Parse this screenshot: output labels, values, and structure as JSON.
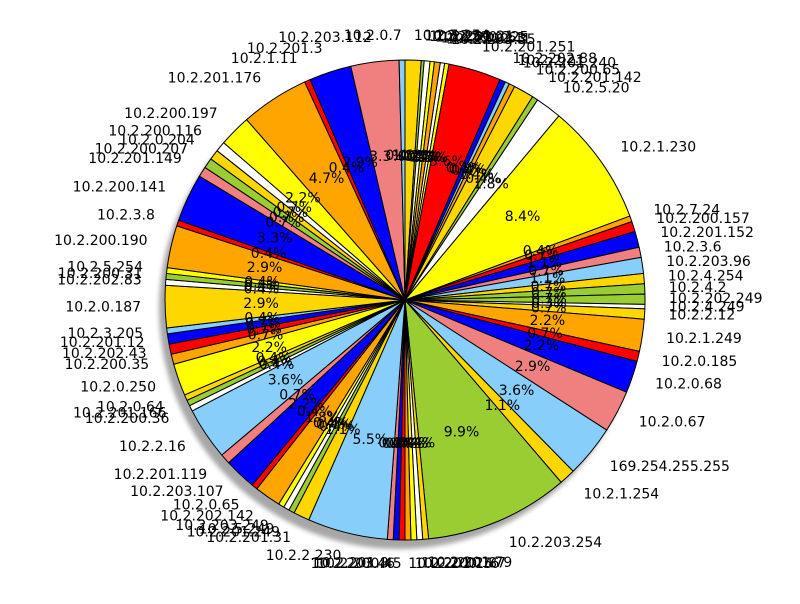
{
  "chart_data": {
    "type": "pie",
    "title": "",
    "shadow": true,
    "start_angle_deg": 90,
    "direction": "clockwise",
    "slices": [
      {
        "label": "10.2.7.254",
        "value": 1.1,
        "pct_label": "1.1%",
        "color": "#ffd700"
      },
      {
        "label": "10.2.2.10",
        "value": 0.2,
        "pct_label": "0.2%",
        "color": "#9acd32"
      },
      {
        "label": "10.2.201.21",
        "value": 0.4,
        "pct_label": "0.4%",
        "color": "#ffffff"
      },
      {
        "label": "10.2.200.225",
        "value": 0.3,
        "pct_label": "0.3%",
        "color": "#ffff00"
      },
      {
        "label": "10.2.200.63",
        "value": 0.4,
        "pct_label": "0.4%",
        "color": "#ffa500"
      },
      {
        "label": "10.2.200.41",
        "value": 0.3,
        "pct_label": "0.3%",
        "color": "#ffffff"
      },
      {
        "label": "10.2.203.35",
        "value": 0.3,
        "pct_label": "0.3%",
        "color": "#ffff00"
      },
      {
        "label": "10.2.201.251",
        "value": 3.6,
        "pct_label": "3.6%",
        "color": "#ff0000"
      },
      {
        "label": "10.2.202.88",
        "value": 0.4,
        "pct_label": "0.4%",
        "color": "#0000ff"
      },
      {
        "label": "10.2.2.21",
        "value": 0.3,
        "pct_label": "0.3%",
        "color": "#87cefa"
      },
      {
        "label": "10.2.201.240",
        "value": 0.4,
        "pct_label": "0.4%",
        "color": "#ffa500"
      },
      {
        "label": "10.2.200.65",
        "value": 1.4,
        "pct_label": "1.4%",
        "color": "#ffd700"
      },
      {
        "label": "10.2.201.142",
        "value": 0.4,
        "pct_label": "0.4%",
        "color": "#9acd32"
      },
      {
        "label": "10.2.5.20",
        "value": 1.8,
        "pct_label": "1.8%",
        "color": "#ffffff"
      },
      {
        "label": "10.2.1.230",
        "value": 8.4,
        "pct_label": "8.4%",
        "color": "#ffff00"
      },
      {
        "label": "10.2.7.24",
        "value": 0.4,
        "pct_label": "0.4%",
        "color": "#ffa500"
      },
      {
        "label": "10.2.200.157",
        "value": 0.7,
        "pct_label": "0.7%",
        "color": "#ff0000"
      },
      {
        "label": "10.2.201.152",
        "value": 1.1,
        "pct_label": "1.1%",
        "color": "#0000ff"
      },
      {
        "label": "10.2.3.6",
        "value": 0.7,
        "pct_label": "0.7%",
        "color": "#f08080"
      },
      {
        "label": "10.2.203.96",
        "value": 1.1,
        "pct_label": "1.1%",
        "color": "#87cefa"
      },
      {
        "label": "10.2.4.254",
        "value": 0.7,
        "pct_label": "0.7%",
        "color": "#ffd700"
      },
      {
        "label": "10.2.4.2",
        "value": 0.7,
        "pct_label": "0.7%",
        "color": "#9acd32"
      },
      {
        "label": "10.2.202.249",
        "value": 0.7,
        "pct_label": "0.7%",
        "color": "#9acd32"
      },
      {
        "label": "10.2.4.249",
        "value": 0.3,
        "pct_label": "0.3%",
        "color": "#ffffff"
      },
      {
        "label": "10.2.2.12",
        "value": 0.7,
        "pct_label": "0.7%",
        "color": "#ffd700"
      },
      {
        "label": "10.2.1.249",
        "value": 2.2,
        "pct_label": "2.2%",
        "color": "#ffa500"
      },
      {
        "label": "10.2.0.185",
        "value": 0.7,
        "pct_label": "0.7%",
        "color": "#ff0000"
      },
      {
        "label": "10.2.0.68",
        "value": 2.2,
        "pct_label": "2.2%",
        "color": "#0000ff"
      },
      {
        "label": "10.2.0.67",
        "value": 2.9,
        "pct_label": "2.9%",
        "color": "#f08080"
      },
      {
        "label": "169.254.255.255",
        "value": 3.6,
        "pct_label": "3.6%",
        "color": "#87cefa"
      },
      {
        "label": "10.2.1.254",
        "value": 1.1,
        "pct_label": "1.1%",
        "color": "#ffd700"
      },
      {
        "label": "10.2.203.254",
        "value": 9.9,
        "pct_label": "9.9%",
        "color": "#9acd32"
      },
      {
        "label": "10.2.201.79",
        "value": 0.4,
        "pct_label": "0.4%",
        "color": "#ffd700"
      },
      {
        "label": "10.2.202.87",
        "value": 0.4,
        "pct_label": "0.4%",
        "color": "#ffffff"
      },
      {
        "label": "10.2.200.76",
        "value": 0.4,
        "pct_label": "0.4%",
        "color": "#ffff00"
      },
      {
        "label": "10.2.201.15",
        "value": 0.4,
        "pct_label": "0.4%",
        "color": "#ffa500"
      },
      {
        "label": "10.2.200.45",
        "value": 0.4,
        "pct_label": "0.4%",
        "color": "#ff0000"
      },
      {
        "label": "10.2.203.46",
        "value": 0.4,
        "pct_label": "0.4%",
        "color": "#0000ff"
      },
      {
        "label": "10.2.201.8",
        "value": 0.4,
        "pct_label": "0.4%",
        "color": "#f08080"
      },
      {
        "label": "10.2.2.230",
        "value": 5.5,
        "pct_label": "5.5%",
        "color": "#87cefa"
      },
      {
        "label": "10.2.201.31",
        "value": 1.1,
        "pct_label": "1.1%",
        "color": "#ffd700"
      },
      {
        "label": "10.2.201.249",
        "value": 0.4,
        "pct_label": "0.4%",
        "color": "#9acd32"
      },
      {
        "label": "10.2.5.249",
        "value": 0.4,
        "pct_label": "0.4%",
        "color": "#ffffff"
      },
      {
        "label": "10.2.203.249",
        "value": 0.4,
        "pct_label": "0.4%",
        "color": "#ffff00"
      },
      {
        "label": "10.2.202.142",
        "value": 1.8,
        "pct_label": "1.8%",
        "color": "#ffa500"
      },
      {
        "label": "10.2.0.65",
        "value": 0.4,
        "pct_label": "0.4%",
        "color": "#ff0000"
      },
      {
        "label": "10.2.203.107",
        "value": 2.2,
        "pct_label": "2.2%",
        "color": "#0000ff"
      },
      {
        "label": "10.2.201.119",
        "value": 0.7,
        "pct_label": "0.7%",
        "color": "#f08080"
      },
      {
        "label": "10.2.2.16",
        "value": 3.6,
        "pct_label": "3.6%",
        "color": "#87cefa"
      },
      {
        "label": "10.2.200.36",
        "value": 0.4,
        "pct_label": "0.4%",
        "color": "#ffffff"
      },
      {
        "label": "10.2.201.166",
        "value": 0.4,
        "pct_label": "0.4%",
        "color": "#9acd32"
      },
      {
        "label": "10.2.0.64",
        "value": 0.4,
        "pct_label": "0.4%",
        "color": "#ffd700"
      },
      {
        "label": "10.2.0.250",
        "value": 2.2,
        "pct_label": "2.2%",
        "color": "#ffff00"
      },
      {
        "label": "10.2.200.35",
        "value": 0.7,
        "pct_label": "0.7%",
        "color": "#ffa500"
      },
      {
        "label": "10.2.202.43",
        "value": 0.7,
        "pct_label": "0.7%",
        "color": "#ff0000"
      },
      {
        "label": "10.2.201.12",
        "value": 0.7,
        "pct_label": "0.7%",
        "color": "#0000ff"
      },
      {
        "label": "10.2.3.205",
        "value": 0.4,
        "pct_label": "0.4%",
        "color": "#87cefa"
      },
      {
        "label": "10.2.0.187",
        "value": 2.9,
        "pct_label": "2.9%",
        "color": "#ffd700"
      },
      {
        "label": "10.2.202.83",
        "value": 0.4,
        "pct_label": "0.4%",
        "color": "#ffffff"
      },
      {
        "label": "10.2.200.31",
        "value": 0.4,
        "pct_label": "0.4%",
        "color": "#9acd32"
      },
      {
        "label": "10.2.5.254",
        "value": 0.4,
        "pct_label": "0.4%",
        "color": "#ffff00"
      },
      {
        "label": "10.2.200.190",
        "value": 2.9,
        "pct_label": "2.9%",
        "color": "#ffa500"
      },
      {
        "label": "10.2.3.8",
        "value": 0.4,
        "pct_label": "0.4%",
        "color": "#ff0000"
      },
      {
        "label": "10.2.200.141",
        "value": 3.3,
        "pct_label": "3.3%",
        "color": "#0000ff"
      },
      {
        "label": "10.2.201.149",
        "value": 0.7,
        "pct_label": "0.7%",
        "color": "#f08080"
      },
      {
        "label": "10.2.200.207",
        "value": 0.7,
        "pct_label": "0.7%",
        "color": "#9acd32"
      },
      {
        "label": "10.2.0.204",
        "value": 0.7,
        "pct_label": "0.7%",
        "color": "#ffd700"
      },
      {
        "label": "10.2.200.116",
        "value": 0.7,
        "pct_label": "0.7%",
        "color": "#ffffff"
      },
      {
        "label": "10.2.200.197",
        "value": 2.2,
        "pct_label": "2.2%",
        "color": "#ffff00"
      },
      {
        "label": "10.2.201.176",
        "value": 4.7,
        "pct_label": "4.7%",
        "color": "#ffa500"
      },
      {
        "label": "10.2.1.11",
        "value": 0.4,
        "pct_label": "0.4%",
        "color": "#ff0000"
      },
      {
        "label": "10.2.201.3",
        "value": 2.9,
        "pct_label": "2.9%",
        "color": "#0000ff"
      },
      {
        "label": "10.2.203.112",
        "value": 3.3,
        "pct_label": "3.3%",
        "color": "#f08080"
      },
      {
        "label": "10.2.0.7",
        "value": 0.4,
        "pct_label": "0.4%",
        "color": "#87cefa"
      }
    ]
  }
}
